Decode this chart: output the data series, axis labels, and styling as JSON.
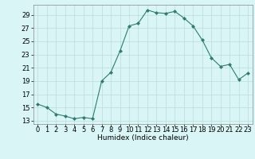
{
  "x": [
    0,
    1,
    2,
    3,
    4,
    5,
    6,
    7,
    8,
    9,
    10,
    11,
    12,
    13,
    14,
    15,
    16,
    17,
    18,
    19,
    20,
    21,
    22,
    23
  ],
  "y": [
    15.5,
    15.0,
    14.0,
    13.7,
    13.3,
    13.5,
    13.3,
    19.0,
    20.3,
    23.5,
    27.3,
    27.7,
    29.7,
    29.3,
    29.2,
    29.5,
    28.5,
    27.3,
    25.2,
    22.5,
    21.2,
    21.5,
    19.2,
    20.2
  ],
  "line_color": "#2e7d6e",
  "marker": "D",
  "marker_size": 2.0,
  "bg_color": "#d9f5f5",
  "grid_color": "#b8dede",
  "xlabel": "Humidex (Indice chaleur)",
  "xlim": [
    -0.5,
    23.5
  ],
  "ylim": [
    12.5,
    30.5
  ],
  "yticks": [
    13,
    15,
    17,
    19,
    21,
    23,
    25,
    27,
    29
  ],
  "xticks": [
    0,
    1,
    2,
    3,
    4,
    5,
    6,
    7,
    8,
    9,
    10,
    11,
    12,
    13,
    14,
    15,
    16,
    17,
    18,
    19,
    20,
    21,
    22,
    23
  ],
  "xlabel_fontsize": 6.5,
  "tick_fontsize": 6.0
}
